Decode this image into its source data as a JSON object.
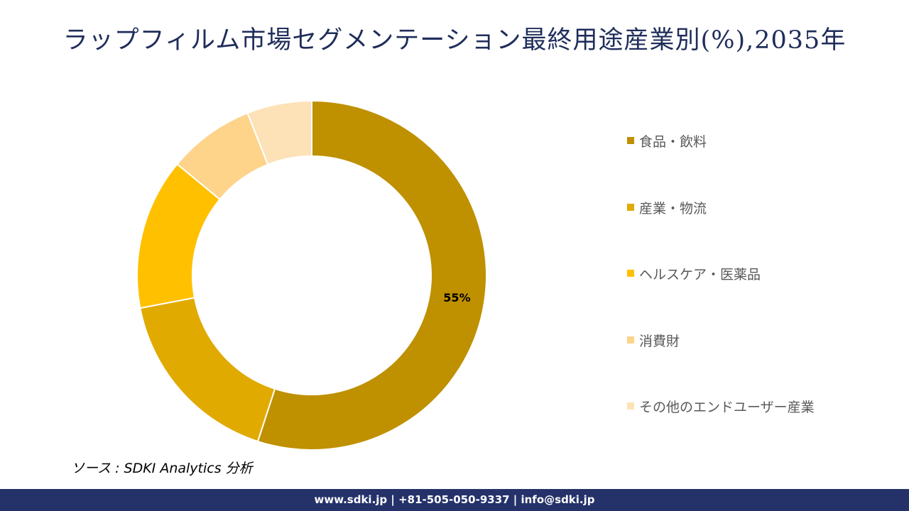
{
  "title": "ラップフィルム市場セグメンテーション最終用途産業別(%),2035年",
  "chart_data": {
    "type": "pie",
    "donut": true,
    "categories": [
      "食品・飲料",
      "産業・物流",
      "ヘルスケア・医薬品",
      "消費財",
      "その他のエンドユーザー産業"
    ],
    "values": [
      55,
      17,
      14,
      8,
      6
    ],
    "colors": [
      "#bf9000",
      "#e0aa00",
      "#ffc000",
      "#fed38a",
      "#fde2b8"
    ],
    "data_labels": [
      "55%",
      "",
      "",
      "",
      ""
    ],
    "legend_position": "right"
  },
  "source": "ソース : SDKI Analytics 分析",
  "footer": "www.sdki.jp | +81-505-050-9337 | info@sdki.jp"
}
